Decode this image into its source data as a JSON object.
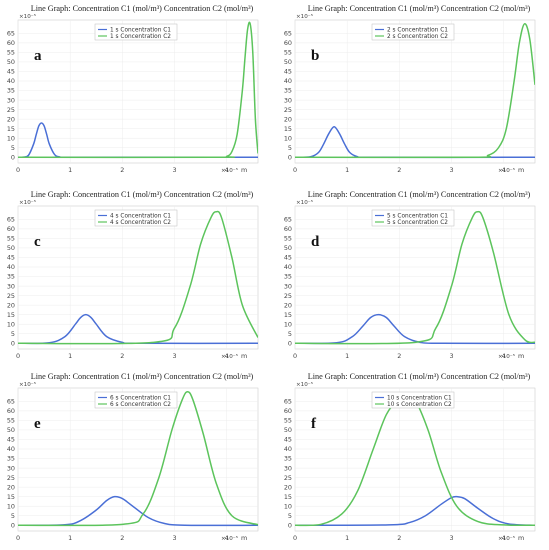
{
  "chart_data": [
    {
      "type": "line",
      "panel_label": "a",
      "title": "Line Graph: Concentration C1 (mol/m³) Concentration C2 (mol/m³)",
      "x_multiplier": "×10⁻⁵",
      "x_unit": "m",
      "y_multiplier": "×10⁻⁵",
      "xlim": [
        0,
        4.6
      ],
      "ylim": [
        -3,
        72
      ],
      "xticks": [
        0,
        1,
        2,
        3,
        4
      ],
      "yticks": [
        0,
        5,
        10,
        15,
        20,
        25,
        30,
        35,
        40,
        45,
        50,
        55,
        60,
        65
      ],
      "legend_position": "top-center",
      "series": [
        {
          "name": "1 s Concentration C1",
          "color": "#4a6fd6",
          "x": [
            0,
            0.1,
            0.2,
            0.3,
            0.35,
            0.4,
            0.45,
            0.5,
            0.55,
            0.6,
            0.7,
            0.8,
            1.0,
            4.6
          ],
          "y": [
            0,
            0.1,
            1,
            7,
            12,
            16.5,
            18,
            16.5,
            12,
            7,
            1.5,
            0.2,
            0,
            0
          ]
        },
        {
          "name": "1 s Concentration C2",
          "color": "#5cc45c",
          "x": [
            0,
            3.8,
            4.0,
            4.1,
            4.2,
            4.3,
            4.35,
            4.4,
            4.45,
            4.5,
            4.55,
            4.6
          ],
          "y": [
            0,
            0,
            0.5,
            3,
            12,
            35,
            52,
            67,
            70,
            55,
            20,
            2
          ]
        }
      ]
    },
    {
      "type": "line",
      "panel_label": "b",
      "title": "Line Graph: Concentration C1 (mol/m³) Concentration C2 (mol/m³)",
      "x_multiplier": "×10⁻⁵",
      "x_unit": "m",
      "y_multiplier": "×10⁻⁵",
      "xlim": [
        0,
        4.6
      ],
      "ylim": [
        -3,
        72
      ],
      "xticks": [
        0,
        1,
        2,
        3,
        4
      ],
      "yticks": [
        0,
        5,
        10,
        15,
        20,
        25,
        30,
        35,
        40,
        45,
        50,
        55,
        60,
        65
      ],
      "legend_position": "top-center",
      "series": [
        {
          "name": "2 s Concentration C1",
          "color": "#4a6fd6",
          "x": [
            0,
            0.3,
            0.45,
            0.55,
            0.65,
            0.75,
            0.85,
            0.95,
            1.05,
            1.2,
            1.4,
            4.6
          ],
          "y": [
            0,
            0.3,
            2.5,
            7,
            12.5,
            16,
            12.5,
            7,
            2.5,
            0.3,
            0,
            0
          ]
        },
        {
          "name": "2 s Concentration C2",
          "color": "#5cc45c",
          "x": [
            0,
            3.4,
            3.7,
            3.9,
            4.05,
            4.2,
            4.3,
            4.4,
            4.5,
            4.6
          ],
          "y": [
            0,
            0,
            1,
            5,
            15,
            40,
            60,
            70,
            62,
            38
          ]
        }
      ]
    },
    {
      "type": "line",
      "panel_label": "c",
      "title": "Line Graph: Concentration C1 (mol/m³) Concentration C2 (mol/m³)",
      "x_multiplier": "×10⁻⁵",
      "x_unit": "m",
      "y_multiplier": "×10⁻⁵",
      "xlim": [
        0,
        4.6
      ],
      "ylim": [
        -3,
        72
      ],
      "xticks": [
        0,
        1,
        2,
        3,
        4
      ],
      "yticks": [
        0,
        5,
        10,
        15,
        20,
        25,
        30,
        35,
        40,
        45,
        50,
        55,
        60,
        65
      ],
      "legend_position": "top-center",
      "series": [
        {
          "name": "4 s Concentration C1",
          "color": "#4a6fd6",
          "x": [
            0,
            0.6,
            0.9,
            1.1,
            1.2,
            1.3,
            1.4,
            1.5,
            1.7,
            2.0,
            2.3,
            4.6
          ],
          "y": [
            0,
            0.3,
            3.5,
            10,
            13.5,
            15,
            13.5,
            10,
            3.5,
            0.5,
            0,
            0
          ]
        },
        {
          "name": "4 s Concentration C2",
          "color": "#5cc45c",
          "x": [
            0,
            2.6,
            3.0,
            3.3,
            3.5,
            3.7,
            3.8,
            3.9,
            4.1,
            4.3,
            4.6
          ],
          "y": [
            0,
            0.5,
            8,
            30,
            52,
            66,
            69,
            66,
            45,
            20,
            3
          ]
        }
      ]
    },
    {
      "type": "line",
      "panel_label": "d",
      "title": "Line Graph: Concentration C1 (mol/m³) Concentration C2 (mol/m³)",
      "x_multiplier": "×10⁻⁵",
      "x_unit": "m",
      "y_multiplier": "×10⁻⁵",
      "xlim": [
        0,
        4.6
      ],
      "ylim": [
        -3,
        72
      ],
      "xticks": [
        0,
        1,
        2,
        3,
        4
      ],
      "yticks": [
        0,
        5,
        10,
        15,
        20,
        25,
        30,
        35,
        40,
        45,
        50,
        55,
        60,
        65
      ],
      "legend_position": "top-center",
      "series": [
        {
          "name": "5 s Concentration C1",
          "color": "#4a6fd6",
          "x": [
            0,
            0.8,
            1.1,
            1.3,
            1.45,
            1.6,
            1.75,
            1.9,
            2.1,
            2.4,
            2.8,
            4.6
          ],
          "y": [
            0,
            0.3,
            3.5,
            9,
            13.5,
            15,
            13.5,
            9,
            3.5,
            0.5,
            0,
            0
          ]
        },
        {
          "name": "5 s Concentration C2",
          "color": "#5cc45c",
          "x": [
            0,
            2.3,
            2.7,
            3.0,
            3.2,
            3.4,
            3.5,
            3.6,
            3.8,
            4.1,
            4.4,
            4.6
          ],
          "y": [
            0,
            0.5,
            8,
            30,
            52,
            66,
            69,
            66,
            48,
            15,
            2,
            0.5
          ]
        }
      ]
    },
    {
      "type": "line",
      "panel_label": "e",
      "title": "Line Graph: Concentration C1 (mol/m³) Concentration C2 (mol/m³)",
      "x_multiplier": "×10⁻⁵",
      "x_unit": "m",
      "y_multiplier": "×10⁻⁵",
      "xlim": [
        0,
        4.6
      ],
      "ylim": [
        -3,
        72
      ],
      "xticks": [
        0,
        1,
        2,
        3,
        4
      ],
      "yticks": [
        0,
        5,
        10,
        15,
        20,
        25,
        30,
        35,
        40,
        45,
        50,
        55,
        60,
        65
      ],
      "legend_position": "top-center",
      "series": [
        {
          "name": "6 s Concentration C1",
          "color": "#4a6fd6",
          "x": [
            0,
            0.9,
            1.2,
            1.5,
            1.7,
            1.85,
            2.0,
            2.2,
            2.5,
            2.8,
            3.2,
            4.6
          ],
          "y": [
            0,
            0.3,
            2.5,
            8,
            13,
            15,
            14,
            10,
            4,
            1,
            0,
            0
          ]
        },
        {
          "name": "6 s Concentration C2",
          "color": "#5cc45c",
          "x": [
            0,
            2.0,
            2.4,
            2.7,
            2.95,
            3.15,
            3.25,
            3.35,
            3.55,
            3.8,
            4.1,
            4.6
          ],
          "y": [
            0,
            0.5,
            6,
            25,
            50,
            66,
            70,
            66,
            48,
            22,
            5,
            0.3
          ]
        }
      ]
    },
    {
      "type": "line",
      "panel_label": "f",
      "title": "Line Graph: Concentration C1 (mol/m³) Concentration C2 (mol/m³)",
      "x_multiplier": "×10⁻⁵",
      "x_unit": "m",
      "y_multiplier": "×10⁻⁵",
      "xlim": [
        0,
        4.6
      ],
      "ylim": [
        -3,
        72
      ],
      "xticks": [
        0,
        1,
        2,
        3,
        4
      ],
      "yticks": [
        0,
        5,
        10,
        15,
        20,
        25,
        30,
        35,
        40,
        45,
        50,
        55,
        60,
        65
      ],
      "legend_position": "top-center",
      "series": [
        {
          "name": "10 s Concentration C1",
          "color": "#4a6fd6",
          "x": [
            0,
            1.8,
            2.2,
            2.5,
            2.8,
            3.0,
            3.1,
            3.25,
            3.5,
            3.8,
            4.1,
            4.6
          ],
          "y": [
            0,
            0.2,
            1.5,
            5,
            11,
            14.5,
            15,
            14,
            9,
            3.5,
            0.7,
            0
          ]
        },
        {
          "name": "10 s Concentration C2",
          "color": "#5cc45c",
          "x": [
            0,
            0.5,
            0.9,
            1.2,
            1.5,
            1.75,
            2.0,
            2.15,
            2.3,
            2.55,
            2.8,
            3.1,
            3.5,
            4.0,
            4.6
          ],
          "y": [
            0,
            0.5,
            6,
            18,
            40,
            58,
            67,
            69,
            66,
            50,
            28,
            10,
            2,
            0.2,
            0
          ]
        }
      ]
    }
  ]
}
